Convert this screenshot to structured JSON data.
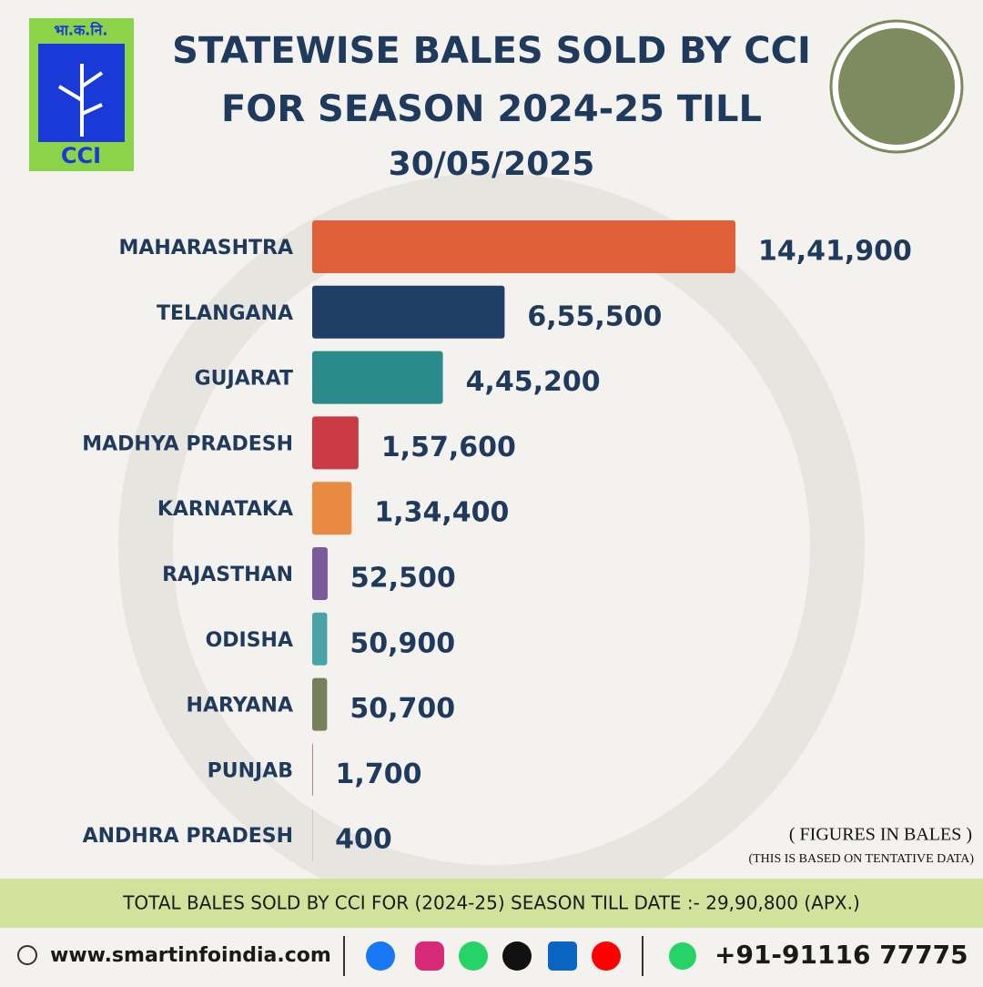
{
  "logo": {
    "hindi": "भा.क.नि.",
    "name": "CCI"
  },
  "chart_data": {
    "type": "bar",
    "orientation": "horizontal",
    "title": [
      "STATEWISE BALES SOLD BY CCI",
      "FOR SEASON 2024-25 TILL",
      "30/05/2025"
    ],
    "categories": [
      "MAHARASHTRA",
      "TELANGANA",
      "GUJARAT",
      "MADHYA PRADESH",
      "KARNATAKA",
      "RAJASTHAN",
      "ODISHA",
      "HARYANA",
      "PUNJAB",
      "ANDHRA PRADESH"
    ],
    "values": [
      1441900,
      655500,
      445200,
      157600,
      134400,
      52500,
      50900,
      50700,
      1700,
      400
    ],
    "value_labels": [
      "14,41,900",
      "6,55,500",
      "4,45,200",
      "1,57,600",
      "1,34,400",
      "52,500",
      "50,900",
      "50,700",
      "1,700",
      "400"
    ],
    "colors": [
      "#e0603a",
      "#1f3f66",
      "#2a8a8c",
      "#c93a45",
      "#e88a42",
      "#7a5a9a",
      "#4aa3a8",
      "#77805a",
      "#6e3232",
      "#1f3f66"
    ],
    "notes": [
      "( FIGURES IN BALES )",
      "(THIS IS BASED ON TENTATIVE DATA)"
    ]
  },
  "footer": {
    "total": "TOTAL BALES SOLD BY CCI FOR (2024-25) SEASON TILL DATE :- 29,90,800 (APX.)",
    "website": "www.smartinfoindia.com",
    "phone": "+91-91116 77775"
  }
}
